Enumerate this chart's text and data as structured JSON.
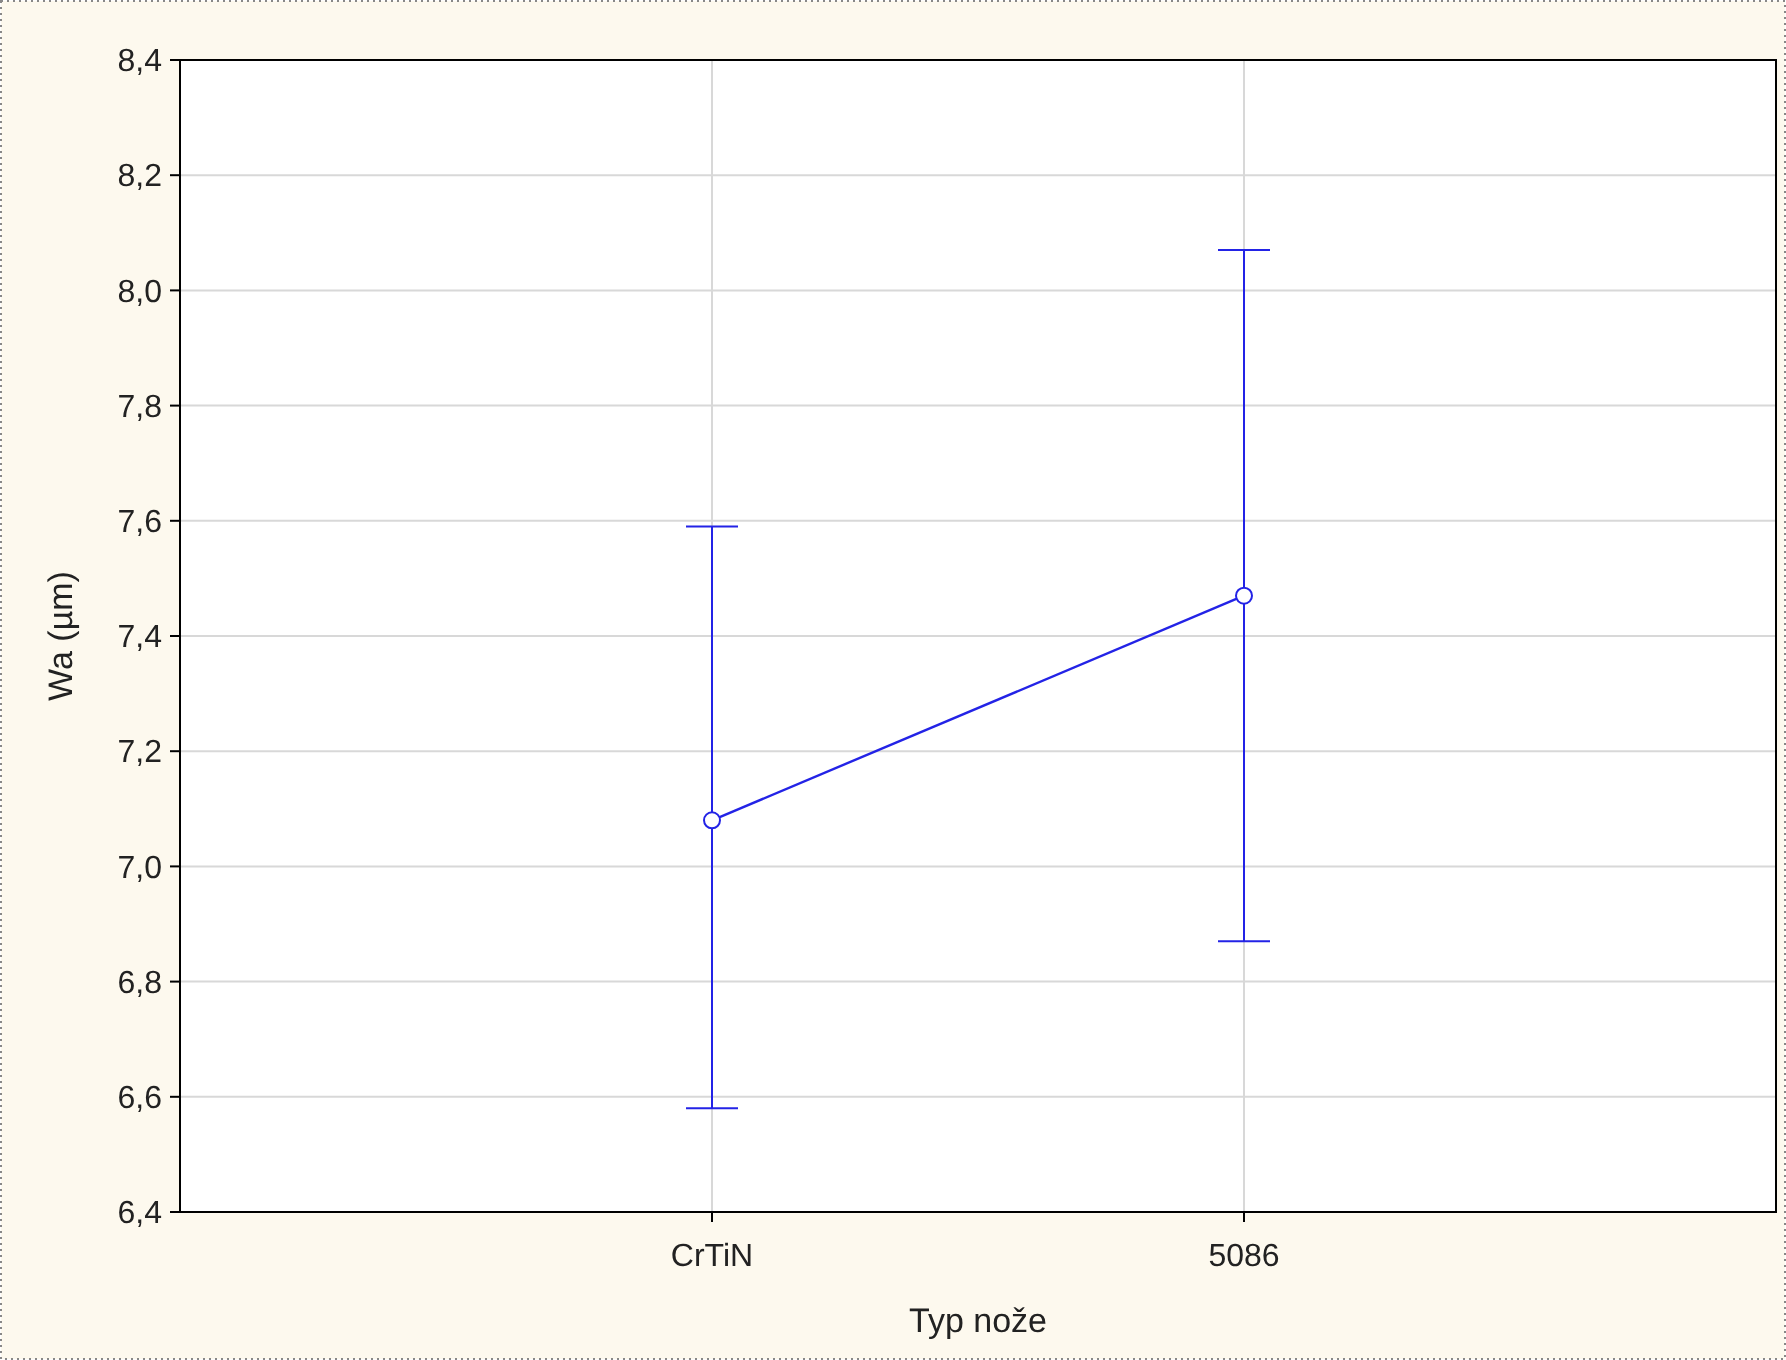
{
  "chart_data": {
    "type": "line",
    "xlabel": "Typ nože",
    "ylabel": "Wa (µm)",
    "categories": [
      "CrTiN",
      "5086"
    ],
    "series": [
      {
        "color": "#2323e6",
        "values": [
          7.08,
          7.47
        ],
        "errors": [
          [
            6.58,
            7.59
          ],
          [
            6.87,
            8.07
          ]
        ]
      }
    ],
    "ylim": [
      6.4,
      8.4
    ],
    "yticks": [
      {
        "value": 6.4,
        "label": "6,4"
      },
      {
        "value": 6.6,
        "label": "6,6"
      },
      {
        "value": 6.8,
        "label": "6,8"
      },
      {
        "value": 7.0,
        "label": "7,0"
      },
      {
        "value": 7.2,
        "label": "7,2"
      },
      {
        "value": 7.4,
        "label": "7,4"
      },
      {
        "value": 7.6,
        "label": "7,6"
      },
      {
        "value": 7.8,
        "label": "7,8"
      },
      {
        "value": 8.0,
        "label": "8,0"
      },
      {
        "value": 8.2,
        "label": "8,2"
      },
      {
        "value": 8.4,
        "label": "8,4"
      }
    ],
    "grid": true,
    "marker": "circle",
    "line_style": "solid"
  }
}
